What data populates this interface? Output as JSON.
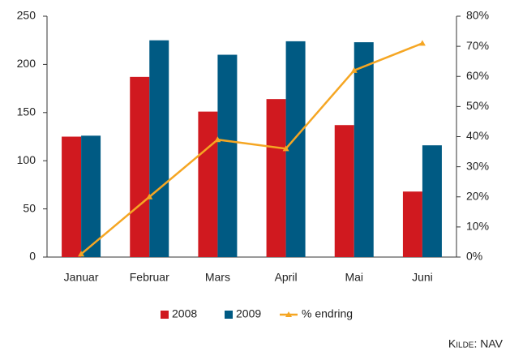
{
  "chart_data": {
    "type": "bar",
    "categories": [
      "Januar",
      "Februar",
      "Mars",
      "April",
      "Mai",
      "Juni"
    ],
    "series": [
      {
        "name": "2008",
        "color": "#d0191f",
        "values": [
          125,
          187,
          151,
          164,
          137,
          68
        ]
      },
      {
        "name": "2009",
        "color": "#005a83",
        "values": [
          126,
          225,
          210,
          224,
          223,
          116
        ]
      },
      {
        "name": "% endring",
        "color": "#f5a623",
        "type": "line",
        "axis": "y2",
        "values": [
          1,
          20,
          39,
          36,
          62,
          71
        ]
      }
    ],
    "ylim": [
      0,
      250
    ],
    "yticks": [
      0,
      50,
      100,
      150,
      200,
      250
    ],
    "y2lim": [
      0,
      80
    ],
    "y2ticks": [
      {
        "value": 0,
        "label": "0%"
      },
      {
        "value": 10,
        "label": "10%"
      },
      {
        "value": 20,
        "label": "20%"
      },
      {
        "value": 30,
        "label": "30%"
      },
      {
        "value": 40,
        "label": "40%"
      },
      {
        "value": 50,
        "label": "50%"
      },
      {
        "value": 60,
        "label": "60%"
      },
      {
        "value": 70,
        "label": "70%"
      },
      {
        "value": 80,
        "label": "80%"
      }
    ],
    "legend": "bottom",
    "source": "Kilde: NAV"
  }
}
